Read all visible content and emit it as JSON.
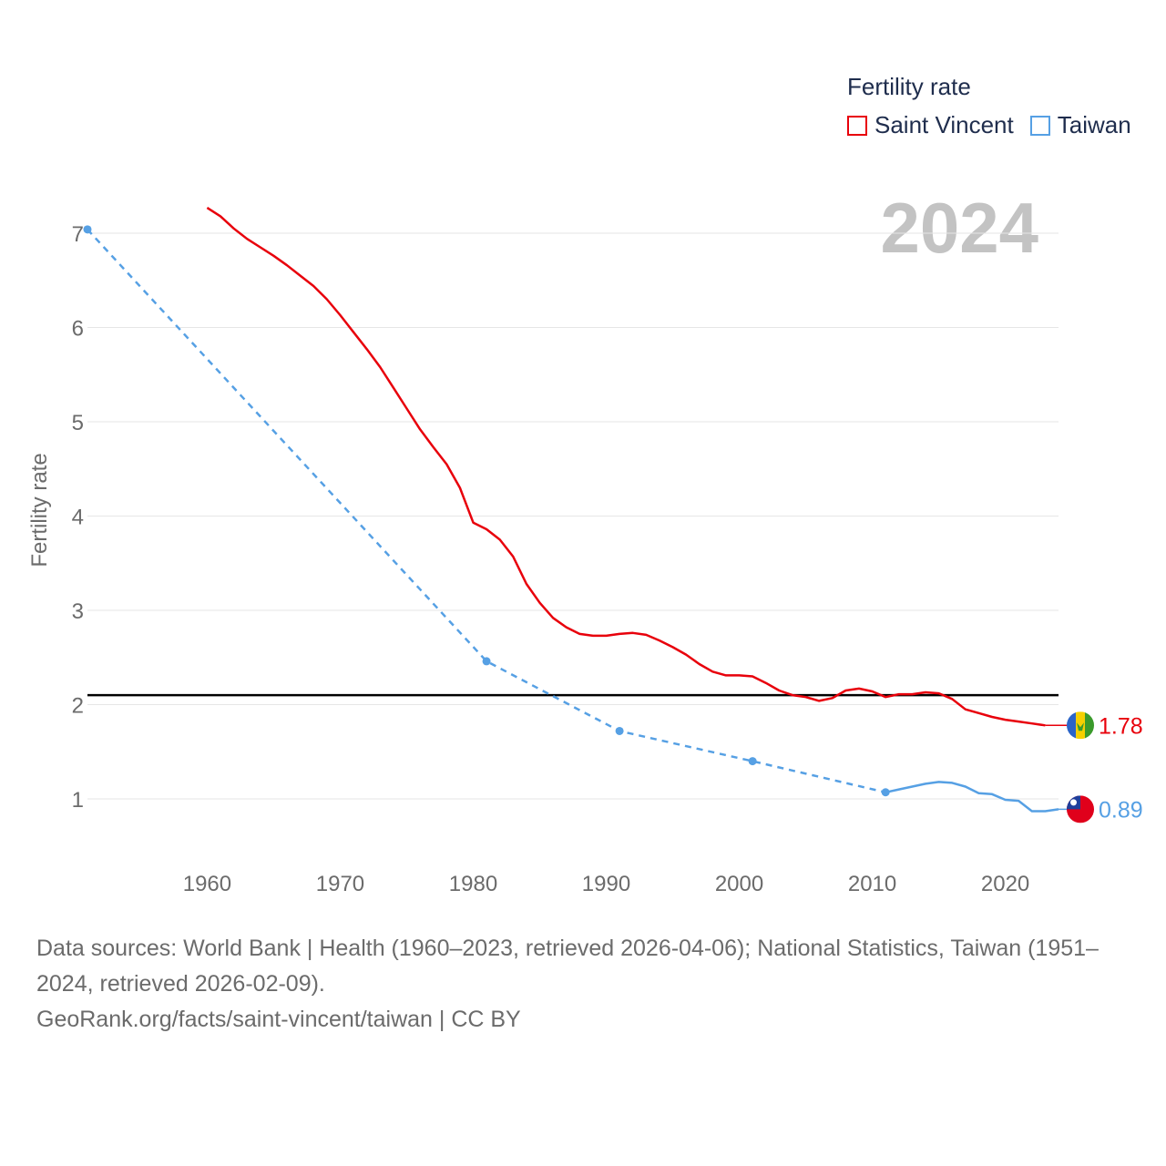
{
  "chart_data": {
    "type": "line",
    "title": "Fertility rate",
    "ylabel": "Fertility rate",
    "xlabel": "",
    "year_label": "2024",
    "xlim": [
      1951,
      2024
    ],
    "ylim": [
      0.5,
      7.4
    ],
    "x_ticks": [
      1960,
      1970,
      1980,
      1990,
      2000,
      2010,
      2020
    ],
    "y_ticks": [
      1,
      2,
      3,
      4,
      5,
      6,
      7
    ],
    "reference_line": {
      "value": 2.1,
      "color": "#000000"
    },
    "series": [
      {
        "name": "Saint Vincent",
        "color": "#e8000b",
        "end_label": "1.78",
        "flag": "saint-vincent-flag-icon",
        "x": [
          1960,
          1961,
          1962,
          1963,
          1964,
          1965,
          1966,
          1967,
          1968,
          1969,
          1970,
          1971,
          1972,
          1973,
          1974,
          1975,
          1976,
          1977,
          1978,
          1979,
          1980,
          1981,
          1982,
          1983,
          1984,
          1985,
          1986,
          1987,
          1988,
          1989,
          1990,
          1991,
          1992,
          1993,
          1994,
          1995,
          1996,
          1997,
          1998,
          1999,
          2000,
          2001,
          2002,
          2003,
          2004,
          2005,
          2006,
          2007,
          2008,
          2009,
          2010,
          2011,
          2012,
          2013,
          2014,
          2015,
          2016,
          2017,
          2018,
          2019,
          2020,
          2021,
          2022,
          2023
        ],
        "values": [
          7.27,
          7.18,
          7.05,
          6.94,
          6.85,
          6.76,
          6.66,
          6.55,
          6.44,
          6.3,
          6.13,
          5.95,
          5.77,
          5.58,
          5.36,
          5.14,
          4.92,
          4.73,
          4.55,
          4.3,
          3.93,
          3.86,
          3.75,
          3.57,
          3.28,
          3.08,
          2.92,
          2.82,
          2.75,
          2.73,
          2.73,
          2.75,
          2.76,
          2.74,
          2.68,
          2.61,
          2.53,
          2.43,
          2.35,
          2.31,
          2.31,
          2.3,
          2.23,
          2.15,
          2.1,
          2.08,
          2.04,
          2.07,
          2.15,
          2.17,
          2.14,
          2.08,
          2.11,
          2.11,
          2.13,
          2.12,
          2.06,
          1.95,
          1.91,
          1.87,
          1.84,
          1.82,
          1.8,
          1.78
        ]
      },
      {
        "name": "Taiwan",
        "color": "#56a0e4",
        "end_label": "0.89",
        "flag": "taiwan-flag-icon",
        "dashed_x": [
          1951,
          1981,
          1991,
          2001,
          2011
        ],
        "dashed_values": [
          7.04,
          2.46,
          1.72,
          1.4,
          1.07
        ],
        "x": [
          2011,
          2012,
          2013,
          2014,
          2015,
          2016,
          2017,
          2018,
          2019,
          2020,
          2021,
          2022,
          2023,
          2024
        ],
        "values": [
          1.07,
          1.1,
          1.13,
          1.16,
          1.18,
          1.17,
          1.13,
          1.06,
          1.05,
          0.99,
          0.98,
          0.87,
          0.87,
          0.89
        ],
        "marker_x": [
          1951,
          1981,
          1991,
          2001,
          2011
        ],
        "marker_values": [
          7.04,
          2.46,
          1.72,
          1.4,
          1.07
        ]
      }
    ]
  },
  "footer": {
    "sources": "Data sources: World Bank | Health (1960–2023, retrieved 2026-04-06); National Statistics, Taiwan (1951–2024, retrieved 2026-02-09).",
    "credit": "GeoRank.org/facts/saint-vincent/taiwan | CC BY"
  },
  "colors": {
    "grid": "#e6e6e6",
    "axis_text": "#6b6b6b",
    "legend_text": "#1f2d4d",
    "year_label": "#c3c3c3"
  }
}
